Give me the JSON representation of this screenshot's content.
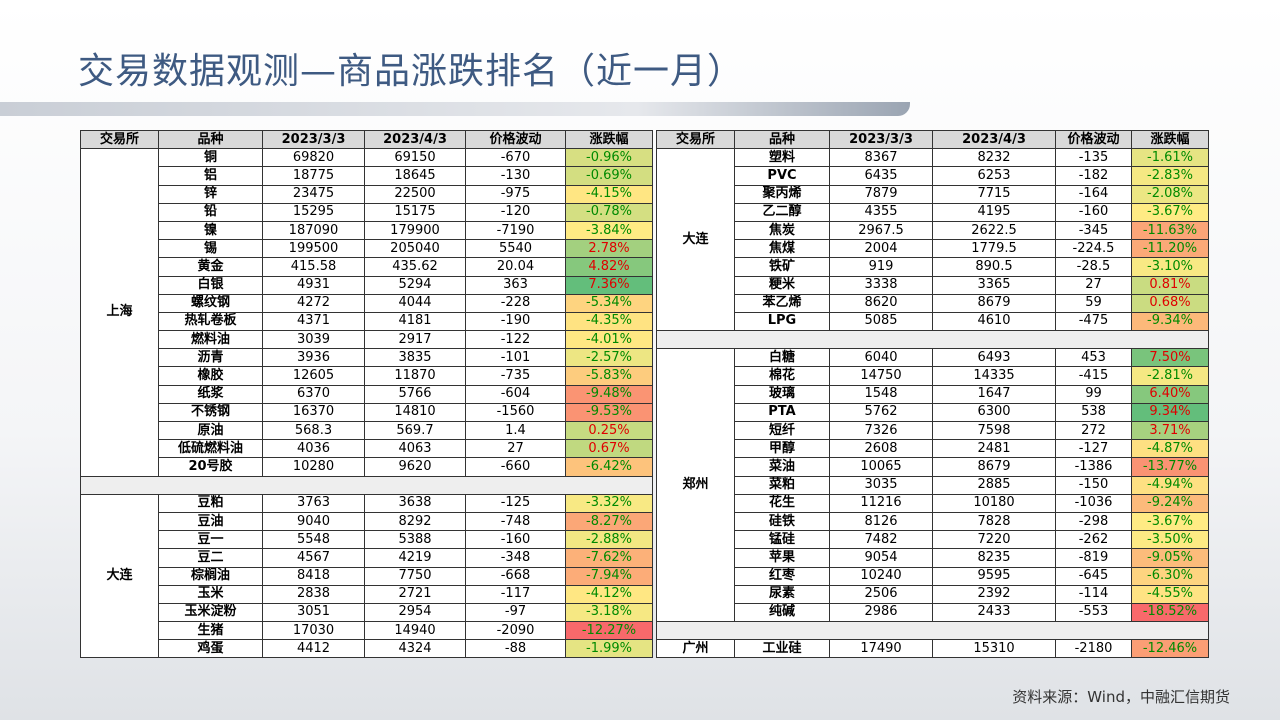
{
  "title": "交易数据观测—商品涨跌排名（近一月）",
  "source": "资料来源：Wind，中融汇信期货",
  "tables": [
    {
      "header": [
        "交易所",
        "品种",
        "2023/3/3",
        "2023/4/3",
        "价格波动",
        "涨跌幅"
      ],
      "groups": [
        {
          "exchange": "上海",
          "rows": [
            [
              "铜",
              "69820",
              "69150",
              "-670",
              "-0.96%"
            ],
            [
              "铝",
              "18775",
              "18645",
              "-130",
              "-0.69%"
            ],
            [
              "锌",
              "23475",
              "22500",
              "-975",
              "-4.15%"
            ],
            [
              "铅",
              "15295",
              "15175",
              "-120",
              "-0.78%"
            ],
            [
              "镍",
              "187090",
              "179900",
              "-7190",
              "-3.84%"
            ],
            [
              "锡",
              "199500",
              "205040",
              "5540",
              "2.78%"
            ],
            [
              "黄金",
              "415.58",
              "435.62",
              "20.04",
              "4.82%"
            ],
            [
              "白银",
              "4931",
              "5294",
              "363",
              "7.36%"
            ],
            [
              "螺纹钢",
              "4272",
              "4044",
              "-228",
              "-5.34%"
            ],
            [
              "热轧卷板",
              "4371",
              "4181",
              "-190",
              "-4.35%"
            ],
            [
              "燃料油",
              "3039",
              "2917",
              "-122",
              "-4.01%"
            ],
            [
              "沥青",
              "3936",
              "3835",
              "-101",
              "-2.57%"
            ],
            [
              "橡胶",
              "12605",
              "11870",
              "-735",
              "-5.83%"
            ],
            [
              "纸浆",
              "6370",
              "5766",
              "-604",
              "-9.48%"
            ],
            [
              "不锈钢",
              "16370",
              "14810",
              "-1560",
              "-9.53%"
            ],
            [
              "原油",
              "568.3",
              "569.7",
              "1.4",
              "0.25%"
            ],
            [
              "低硫燃料油",
              "4036",
              "4063",
              "27",
              "0.67%"
            ],
            [
              "20号胶",
              "10280",
              "9620",
              "-660",
              "-6.42%"
            ]
          ]
        },
        {
          "exchange": "大连",
          "rows": [
            [
              "豆粕",
              "3763",
              "3638",
              "-125",
              "-3.32%"
            ],
            [
              "豆油",
              "9040",
              "8292",
              "-748",
              "-8.27%"
            ],
            [
              "豆一",
              "5548",
              "5388",
              "-160",
              "-2.88%"
            ],
            [
              "豆二",
              "4567",
              "4219",
              "-348",
              "-7.62%"
            ],
            [
              "棕榈油",
              "8418",
              "7750",
              "-668",
              "-7.94%"
            ],
            [
              "玉米",
              "2838",
              "2721",
              "-117",
              "-4.12%"
            ],
            [
              "玉米淀粉",
              "3051",
              "2954",
              "-97",
              "-3.18%"
            ],
            [
              "生猪",
              "17030",
              "14940",
              "-2090",
              "-12.27%"
            ],
            [
              "鸡蛋",
              "4412",
              "4324",
              "-88",
              "-1.99%"
            ]
          ]
        }
      ]
    },
    {
      "header": [
        "交易所",
        "品种",
        "2023/3/3",
        "2023/4/3",
        "价格波动",
        "涨跌幅"
      ],
      "groups": [
        {
          "exchange": "大连",
          "rows": [
            [
              "塑料",
              "8367",
              "8232",
              "-135",
              "-1.61%"
            ],
            [
              "PVC",
              "6435",
              "6253",
              "-182",
              "-2.83%"
            ],
            [
              "聚丙烯",
              "7879",
              "7715",
              "-164",
              "-2.08%"
            ],
            [
              "乙二醇",
              "4355",
              "4195",
              "-160",
              "-3.67%"
            ],
            [
              "焦炭",
              "2967.5",
              "2622.5",
              "-345",
              "-11.63%"
            ],
            [
              "焦煤",
              "2004",
              "1779.5",
              "-224.5",
              "-11.20%"
            ],
            [
              "铁矿",
              "919",
              "890.5",
              "-28.5",
              "-3.10%"
            ],
            [
              "粳米",
              "3338",
              "3365",
              "27",
              "0.81%"
            ],
            [
              "苯乙烯",
              "8620",
              "8679",
              "59",
              "0.68%"
            ],
            [
              "LPG",
              "5085",
              "4610",
              "-475",
              "-9.34%"
            ]
          ]
        },
        {
          "exchange": "郑州",
          "rows": [
            [
              "白糖",
              "6040",
              "6493",
              "453",
              "7.50%"
            ],
            [
              "棉花",
              "14750",
              "14335",
              "-415",
              "-2.81%"
            ],
            [
              "玻璃",
              "1548",
              "1647",
              "99",
              "6.40%"
            ],
            [
              "PTA",
              "5762",
              "6300",
              "538",
              "9.34%"
            ],
            [
              "短纤",
              "7326",
              "7598",
              "272",
              "3.71%"
            ],
            [
              "甲醇",
              "2608",
              "2481",
              "-127",
              "-4.87%"
            ],
            [
              "菜油",
              "10065",
              "8679",
              "-1386",
              "-13.77%"
            ],
            [
              "菜粕",
              "3035",
              "2885",
              "-150",
              "-4.94%"
            ],
            [
              "花生",
              "11216",
              "10180",
              "-1036",
              "-9.24%"
            ],
            [
              "硅铁",
              "8126",
              "7828",
              "-298",
              "-3.67%"
            ],
            [
              "锰硅",
              "7482",
              "7220",
              "-262",
              "-3.50%"
            ],
            [
              "苹果",
              "9054",
              "8235",
              "-819",
              "-9.05%"
            ],
            [
              "红枣",
              "10240",
              "9595",
              "-645",
              "-6.30%"
            ],
            [
              "尿素",
              "2506",
              "2392",
              "-114",
              "-4.55%"
            ],
            [
              "纯碱",
              "2986",
              "2433",
              "-553",
              "-18.52%"
            ]
          ]
        },
        {
          "exchange": "广州",
          "rows": [
            [
              "工业硅",
              "17490",
              "15310",
              "-2180",
              "-12.46%"
            ]
          ]
        }
      ]
    }
  ]
}
